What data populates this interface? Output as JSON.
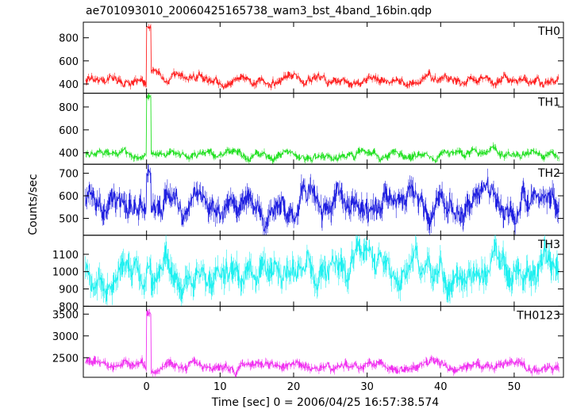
{
  "title": "ae701093010_20060425165738_wam3_bst_4band_16bin.qdp",
  "chart_data": {
    "type": "line",
    "title": "ae701093010_20060425165738_wam3_bst_4band_16bin.qdp",
    "xlabel": "Time [sec] 0 = 2006/04/25 16:57:38.574",
    "ylabel": "Counts/sec",
    "xlim": [
      -8.6,
      56.7
    ],
    "xticks": [
      0,
      10,
      20,
      30,
      40,
      50
    ],
    "legend": "none",
    "grid": false,
    "burst_time": 0.3,
    "panels": [
      {
        "name": "TH0",
        "color": "#ff2020",
        "ylim": [
          320,
          935
        ],
        "yticks": [
          400,
          600,
          800
        ],
        "baseline": 440,
        "amp": 40,
        "err": 22,
        "peak": 900
      },
      {
        "name": "TH1",
        "color": "#20e020",
        "ylim": [
          300,
          920
        ],
        "yticks": [
          400,
          600,
          800
        ],
        "baseline": 385,
        "amp": 30,
        "err": 22,
        "peak": 900
      },
      {
        "name": "TH2",
        "color": "#2020e0",
        "ylim": [
          425,
          740
        ],
        "yticks": [
          500,
          600,
          700
        ],
        "baseline": 560,
        "amp": 55,
        "err": 35,
        "peak": 720
      },
      {
        "name": "TH3",
        "color": "#20f0f0",
        "ylim": [
          800,
          1210
        ],
        "yticks": [
          800,
          900,
          1000,
          1100
        ],
        "baseline": 985,
        "amp": 75,
        "err": 55,
        "peak": 1060
      },
      {
        "name": "TH0123",
        "color": "#f030f0",
        "ylim": [
          2050,
          3680
        ],
        "yticks": [
          2500,
          3000,
          3500
        ],
        "baseline": 2320,
        "amp": 90,
        "err": 70,
        "peak": 3550
      }
    ]
  }
}
